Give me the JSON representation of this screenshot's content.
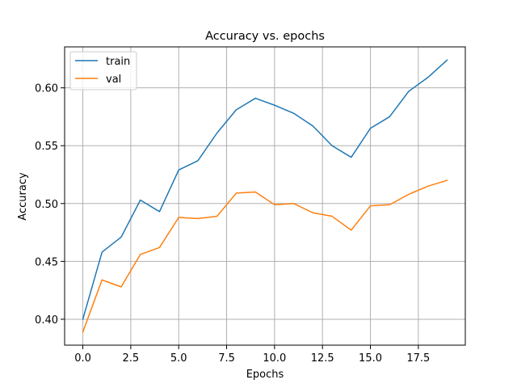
{
  "chart_data": {
    "type": "line",
    "title": "Accuracy vs. epochs",
    "xlabel": "Epochs",
    "ylabel": "Accuracy",
    "x": [
      0,
      1,
      2,
      3,
      4,
      5,
      6,
      7,
      8,
      9,
      10,
      11,
      12,
      13,
      14,
      15,
      16,
      17,
      18,
      19
    ],
    "series": [
      {
        "name": "train",
        "color": "#1f77b4",
        "values": [
          0.4,
          0.458,
          0.471,
          0.503,
          0.493,
          0.529,
          0.537,
          0.561,
          0.581,
          0.591,
          0.585,
          0.578,
          0.567,
          0.55,
          0.54,
          0.565,
          0.575,
          0.597,
          0.609,
          0.624
        ]
      },
      {
        "name": "val",
        "color": "#ff7f0e",
        "values": [
          0.389,
          0.434,
          0.428,
          0.456,
          0.462,
          0.488,
          0.487,
          0.489,
          0.509,
          0.51,
          0.499,
          0.5,
          0.492,
          0.489,
          0.477,
          0.498,
          0.499,
          0.508,
          0.515,
          0.52
        ]
      }
    ],
    "xlim": [
      -0.95,
      19.95
    ],
    "ylim": [
      0.3776,
      0.6354
    ],
    "xticks": [
      0.0,
      2.5,
      5.0,
      7.5,
      10.0,
      12.5,
      15.0,
      17.5
    ],
    "xtick_labels": [
      "0.0",
      "2.5",
      "5.0",
      "7.5",
      "10.0",
      "12.5",
      "15.0",
      "17.5"
    ],
    "yticks": [
      0.4,
      0.45,
      0.5,
      0.55,
      0.6
    ],
    "ytick_labels": [
      "0.40",
      "0.45",
      "0.50",
      "0.55",
      "0.60"
    ],
    "grid": true,
    "legend_position": "top-left"
  }
}
